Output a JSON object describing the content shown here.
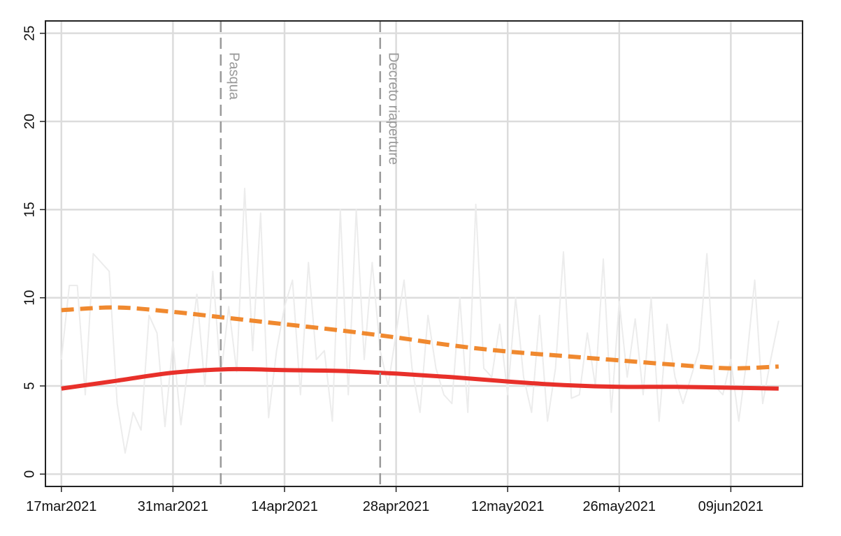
{
  "chart_data": {
    "type": "line",
    "x": [
      "2021-03-17",
      "2021-03-18",
      "2021-03-19",
      "2021-03-20",
      "2021-03-21",
      "2021-03-22",
      "2021-03-23",
      "2021-03-24",
      "2021-03-25",
      "2021-03-26",
      "2021-03-27",
      "2021-03-28",
      "2021-03-29",
      "2021-03-30",
      "2021-03-31",
      "2021-04-01",
      "2021-04-02",
      "2021-04-03",
      "2021-04-04",
      "2021-04-05",
      "2021-04-06",
      "2021-04-07",
      "2021-04-08",
      "2021-04-09",
      "2021-04-10",
      "2021-04-11",
      "2021-04-12",
      "2021-04-13",
      "2021-04-14",
      "2021-04-15",
      "2021-04-16",
      "2021-04-17",
      "2021-04-18",
      "2021-04-19",
      "2021-04-20",
      "2021-04-21",
      "2021-04-22",
      "2021-04-23",
      "2021-04-24",
      "2021-04-25",
      "2021-04-26",
      "2021-04-27",
      "2021-04-28",
      "2021-04-29",
      "2021-04-30",
      "2021-05-01",
      "2021-05-02",
      "2021-05-03",
      "2021-05-04",
      "2021-05-05",
      "2021-05-06",
      "2021-05-07",
      "2021-05-08",
      "2021-05-09",
      "2021-05-10",
      "2021-05-11",
      "2021-05-12",
      "2021-05-13",
      "2021-05-14",
      "2021-05-15",
      "2021-05-16",
      "2021-05-17",
      "2021-05-18",
      "2021-05-19",
      "2021-05-20",
      "2021-05-21",
      "2021-05-22",
      "2021-05-23",
      "2021-05-24",
      "2021-05-25",
      "2021-05-26",
      "2021-05-27",
      "2021-05-28",
      "2021-05-29",
      "2021-05-30",
      "2021-05-31",
      "2021-06-01",
      "2021-06-02",
      "2021-06-03",
      "2021-06-04",
      "2021-06-05",
      "2021-06-06",
      "2021-06-07",
      "2021-06-08",
      "2021-06-09",
      "2021-06-10",
      "2021-06-11",
      "2021-06-12",
      "2021-06-13",
      "2021-06-14",
      "2021-06-15"
    ],
    "series": [
      {
        "color": "#ececec",
        "style": "solid",
        "smooth": false,
        "width": 2,
        "values": [
          6.5,
          10.7,
          10.7,
          4.5,
          12.5,
          12,
          11.5,
          4,
          1.2,
          3.5,
          2.5,
          9,
          8,
          2.7,
          7.5,
          2.8,
          6.5,
          10.2,
          5,
          11.5,
          5.5,
          9.5,
          5.8,
          16.2,
          7,
          14.8,
          3.2,
          7,
          9.5,
          11,
          4.5,
          12,
          6.5,
          7,
          3,
          15,
          4.5,
          15,
          6.5,
          12,
          7,
          5,
          8,
          11,
          6,
          3.5,
          9,
          6,
          4.5,
          4,
          10,
          3.5,
          15.3,
          6,
          5.5,
          8.5,
          4.5,
          10,
          5.5,
          3.5,
          9,
          3,
          6,
          12.6,
          4.3,
          4.5,
          8,
          5,
          12.2,
          3.5,
          9.8,
          5.5,
          8.8,
          4.5,
          10,
          3,
          8.5,
          5.5,
          4,
          5.5,
          7,
          12.5,
          5,
          4.5,
          6.5,
          3,
          6.5,
          11,
          4,
          6.5,
          8.7
        ]
      },
      {
        "color": "#f0892f",
        "style": "dashed",
        "smooth": true,
        "width": 6,
        "x": [
          "2021-03-17",
          "2021-03-24",
          "2021-03-31",
          "2021-04-07",
          "2021-04-14",
          "2021-04-21",
          "2021-04-28",
          "2021-05-05",
          "2021-05-12",
          "2021-05-19",
          "2021-05-26",
          "2021-06-02",
          "2021-06-09",
          "2021-06-15"
        ],
        "values": [
          9.3,
          9.45,
          9.2,
          8.85,
          8.5,
          8.15,
          7.75,
          7.3,
          6.95,
          6.7,
          6.45,
          6.2,
          6.0,
          6.1
        ]
      },
      {
        "color": "#e8302a",
        "style": "solid",
        "smooth": true,
        "width": 6,
        "x": [
          "2021-03-17",
          "2021-03-24",
          "2021-03-31",
          "2021-04-07",
          "2021-04-14",
          "2021-04-21",
          "2021-04-28",
          "2021-05-05",
          "2021-05-12",
          "2021-05-19",
          "2021-05-26",
          "2021-06-02",
          "2021-06-09",
          "2021-06-15"
        ],
        "values": [
          4.85,
          5.3,
          5.75,
          5.95,
          5.9,
          5.85,
          5.7,
          5.5,
          5.25,
          5.05,
          4.95,
          4.95,
          4.9,
          4.85
        ]
      }
    ],
    "annotations": [
      {
        "x": "2021-04-06",
        "text": "Pasqua"
      },
      {
        "x": "2021-04-26",
        "text": "Decreto riaperture"
      }
    ],
    "xlim": [
      "2021-03-15",
      "2021-06-18"
    ],
    "xticks": [
      {
        "value": "2021-03-17",
        "label": "17mar2021"
      },
      {
        "value": "2021-03-31",
        "label": "31mar2021"
      },
      {
        "value": "2021-04-14",
        "label": "14apr2021"
      },
      {
        "value": "2021-04-28",
        "label": "28apr2021"
      },
      {
        "value": "2021-05-12",
        "label": "12may2021"
      },
      {
        "value": "2021-05-26",
        "label": "26may2021"
      },
      {
        "value": "2021-06-09",
        "label": "09jun2021"
      }
    ],
    "ylim": [
      -0.7,
      25.7
    ],
    "yticks": [
      0,
      5,
      10,
      15,
      20,
      25
    ],
    "grid": true
  }
}
